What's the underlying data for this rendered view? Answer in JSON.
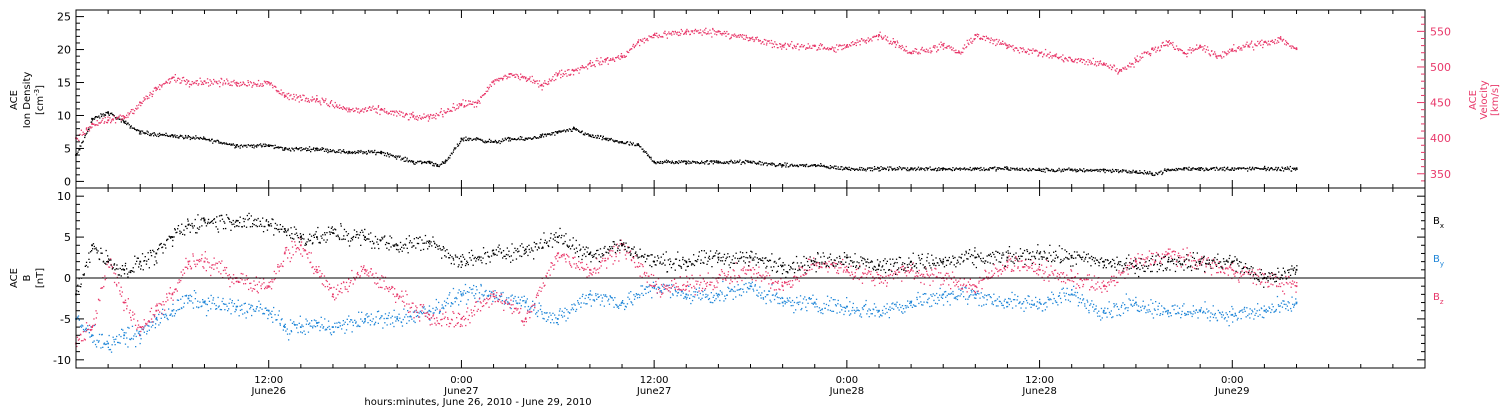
{
  "colors": {
    "black": "#000000",
    "pink": "#e8386a",
    "blue": "#1f86d8"
  },
  "time_axis": {
    "range_hours": [
      0,
      84
    ],
    "ticks": [
      {
        "hours": 12,
        "label1": "12:00",
        "label2": "June26"
      },
      {
        "hours": 24,
        "label1": "0:00",
        "label2": "June27"
      },
      {
        "hours": 36,
        "label1": "12:00",
        "label2": "June27"
      },
      {
        "hours": 48,
        "label1": "0:00",
        "label2": "June28"
      },
      {
        "hours": 60,
        "label1": "12:00",
        "label2": "June28"
      },
      {
        "hours": 72,
        "label1": "0:00",
        "label2": "June29"
      }
    ],
    "xlabel": "hours:minutes, June 26, 2010 - June 29, 2010"
  },
  "chart_data": [
    {
      "type": "scatter",
      "title": "",
      "ylabel_left": [
        "ACE",
        "Ion Density",
        "[cm^-3]"
      ],
      "ylabel_right": [
        "ACE",
        "Velocity",
        "[km/s]"
      ],
      "ylim_left": [
        -1,
        26
      ],
      "yticks_left": [
        0,
        5,
        10,
        15,
        20,
        25
      ],
      "ylim_right": [
        330,
        580
      ],
      "yticks_right": [
        350,
        400,
        450,
        500,
        550
      ],
      "grid": false,
      "series": [
        {
          "key": "density",
          "axis": "left",
          "color": "#000000",
          "x": [
            0,
            1,
            2,
            3,
            4,
            6,
            8,
            10,
            12,
            13,
            15,
            17,
            19,
            21,
            22,
            22.5,
            23,
            24,
            25,
            26,
            27,
            28,
            29,
            30,
            31,
            32,
            33,
            34,
            35,
            36,
            38,
            40,
            42,
            44,
            46,
            48,
            50,
            52,
            54,
            56,
            58,
            60,
            62,
            64,
            66,
            67,
            68,
            69,
            70,
            72,
            74,
            76
          ],
          "y": [
            4,
            9.5,
            10.5,
            9,
            7.5,
            7,
            6.5,
            5.5,
            5.5,
            5,
            5,
            4.5,
            4.5,
            3,
            3,
            2.5,
            3,
            6.5,
            6.5,
            6,
            6.5,
            6.5,
            7,
            7.5,
            8,
            7,
            6.5,
            6,
            5.5,
            3,
            3,
            3,
            3,
            2.5,
            2.5,
            2,
            2,
            2,
            2,
            2,
            2,
            1.8,
            1.8,
            1.8,
            1.5,
            1.2,
            1.8,
            2,
            2,
            2,
            2,
            2
          ]
        },
        {
          "key": "velocity",
          "axis": "right",
          "color": "#e8386a",
          "x": [
            0,
            1,
            2,
            3,
            4,
            5,
            6,
            7,
            8,
            10,
            12,
            13,
            15,
            17,
            19,
            21,
            22,
            24,
            25,
            26,
            27,
            28,
            29,
            30,
            31,
            32,
            33,
            34,
            35,
            36,
            38,
            40,
            42,
            44,
            46,
            47,
            48,
            50,
            51,
            52,
            54,
            55,
            56,
            58,
            60,
            61,
            62,
            64,
            65,
            66,
            67,
            68,
            69,
            70,
            71,
            72,
            73,
            74,
            75,
            76
          ],
          "y": [
            400,
            420,
            425,
            430,
            450,
            470,
            485,
            480,
            480,
            478,
            478,
            460,
            455,
            440,
            440,
            430,
            430,
            448,
            450,
            480,
            490,
            485,
            475,
            490,
            495,
            505,
            510,
            515,
            535,
            545,
            550,
            550,
            540,
            530,
            530,
            525,
            530,
            545,
            535,
            520,
            530,
            520,
            545,
            530,
            520,
            515,
            510,
            505,
            495,
            510,
            525,
            535,
            520,
            530,
            515,
            525,
            530,
            535,
            540,
            525
          ]
        }
      ]
    },
    {
      "type": "scatter",
      "title": "",
      "ylabel": [
        "ACE",
        "B",
        "[nT]"
      ],
      "ylim": [
        -11,
        11
      ],
      "yticks": [
        -10,
        -5,
        0,
        5,
        10
      ],
      "zero_line": true,
      "legend_position": "right",
      "legend": [
        {
          "label": "B",
          "sub": "x",
          "color": "#000000"
        },
        {
          "label": "B",
          "sub": "y",
          "color": "#1f86d8"
        },
        {
          "label": "B",
          "sub": "z",
          "color": "#e8386a"
        }
      ],
      "series": [
        {
          "key": "bx",
          "color": "#000000",
          "x": [
            0,
            1,
            2,
            3,
            4,
            5,
            6,
            7,
            8,
            10,
            12,
            13,
            14,
            15,
            16,
            18,
            20,
            22,
            24,
            26,
            28,
            30,
            32,
            34,
            36,
            38,
            40,
            42,
            44,
            46,
            48,
            50,
            52,
            54,
            56,
            58,
            60,
            62,
            64,
            66,
            68,
            70,
            72,
            74,
            76
          ],
          "y": [
            -2,
            4,
            2,
            1,
            2,
            3,
            5,
            6.5,
            7,
            7,
            6.5,
            6,
            5,
            5,
            5.5,
            5,
            4,
            4.5,
            2,
            3,
            3.5,
            5,
            3,
            4,
            2,
            2,
            2.5,
            2.5,
            1.5,
            2,
            2.5,
            1.5,
            2,
            2,
            2.5,
            2.5,
            3,
            2.5,
            2,
            1.5,
            2,
            2,
            2,
            0,
            1
          ]
        },
        {
          "key": "by",
          "color": "#1f86d8",
          "x": [
            0,
            1,
            2,
            3,
            4,
            5,
            6,
            7,
            8,
            10,
            12,
            13,
            14,
            15,
            16,
            18,
            20,
            22,
            24,
            26,
            28,
            30,
            32,
            34,
            36,
            38,
            40,
            42,
            44,
            46,
            48,
            50,
            52,
            54,
            56,
            58,
            60,
            62,
            64,
            66,
            68,
            70,
            72,
            74,
            76
          ],
          "y": [
            -5,
            -7,
            -8,
            -7,
            -7,
            -5,
            -4,
            -2.5,
            -3,
            -3.5,
            -4,
            -6,
            -6,
            -5.5,
            -6,
            -5,
            -5,
            -4,
            -2,
            -2,
            -3,
            -5,
            -2,
            -3,
            -1,
            -2,
            -2,
            -1,
            -3,
            -3,
            -3.5,
            -4,
            -3,
            -2,
            -2,
            -3,
            -3,
            -2,
            -4,
            -3,
            -4,
            -4,
            -4.5,
            -4,
            -3
          ]
        },
        {
          "key": "bz",
          "color": "#e8386a",
          "x": [
            0,
            1,
            2,
            3,
            4,
            5,
            6,
            7,
            8,
            10,
            12,
            13,
            14,
            15,
            16,
            18,
            20,
            22,
            24,
            26,
            28,
            30,
            32,
            34,
            36,
            38,
            40,
            42,
            44,
            46,
            48,
            50,
            52,
            54,
            56,
            58,
            60,
            62,
            64,
            66,
            68,
            70,
            72,
            74,
            76
          ],
          "y": [
            -8,
            -6,
            2,
            -3,
            -6,
            -4,
            -2,
            2,
            2,
            0,
            -1,
            3,
            4,
            1,
            -2,
            1,
            -2,
            -5,
            -5,
            -2,
            -5,
            3,
            1,
            4,
            -1,
            -1,
            0,
            1,
            -1,
            2,
            1,
            0,
            1,
            0,
            -1,
            2,
            1,
            0,
            -1,
            2,
            3,
            2,
            1,
            0,
            -1
          ]
        }
      ]
    }
  ]
}
